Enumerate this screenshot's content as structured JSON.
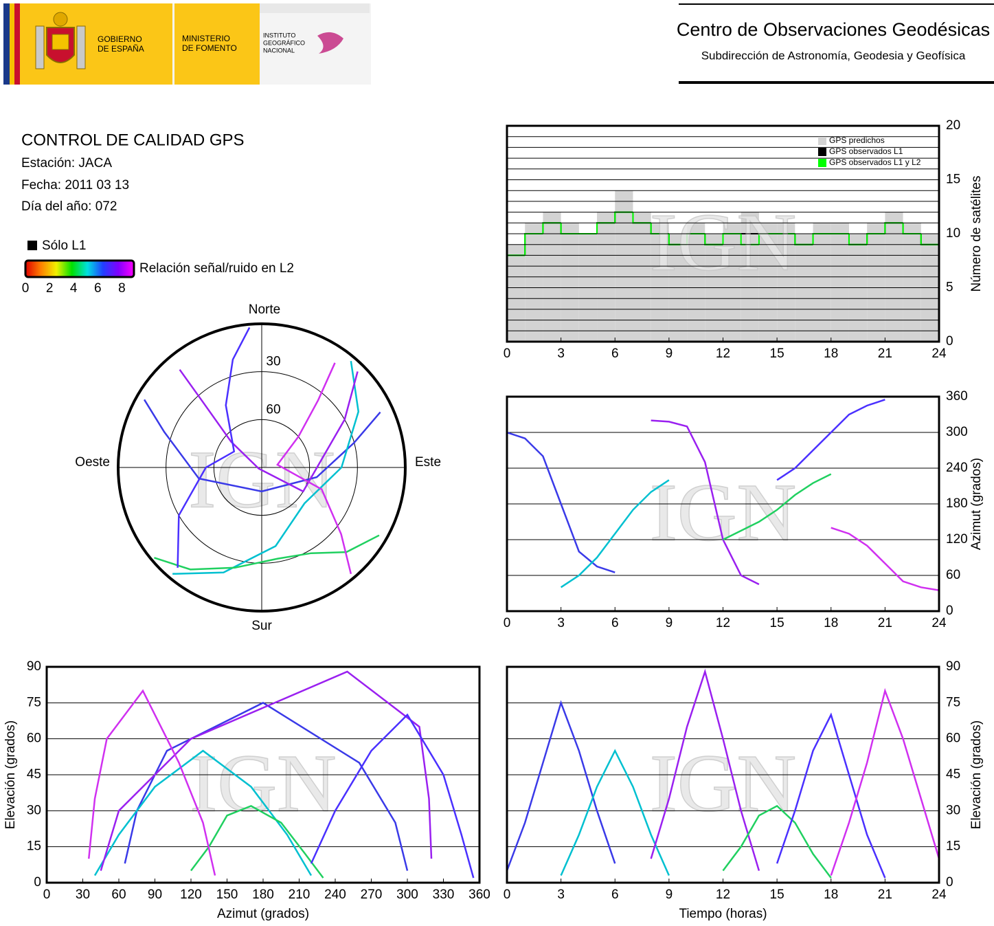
{
  "header": {
    "gobierno": [
      "GOBIERNO",
      "DE ESPAÑA"
    ],
    "ministerio": [
      "MINISTERIO",
      "DE FOMENTO"
    ],
    "instituto": [
      "INSTITUTO",
      "GEOGRÁFICO",
      "NACIONAL"
    ],
    "title": "Centro de Observaciones Geodésicas",
    "subtitle": "Subdirección de Astronomía, Geodesia y Geofísica"
  },
  "info": {
    "title": "CONTROL DE CALIDAD GPS",
    "station": "Estación: JACA",
    "date": "Fecha: 2011 03 13",
    "doy": "Día del año: 072",
    "l1_only": "Sólo L1",
    "colorbar": {
      "label": "Relación señal/ruido en L2",
      "lim": [
        0,
        9
      ],
      "ticks": [
        0,
        2,
        4,
        6,
        8
      ],
      "colors": [
        "#e00000",
        "#ff8000",
        "#f0f000",
        "#00e000",
        "#00e0e0",
        "#2040ff",
        "#8000ff",
        "#ff00ff"
      ]
    }
  },
  "watermark": "IGN",
  "chart_data": [
    {
      "type": "polar",
      "directions": {
        "north": "Norte",
        "south": "Sur",
        "west": "Oeste",
        "east": "Este"
      },
      "rlim": [
        0,
        90
      ],
      "rticks": [
        30,
        60
      ],
      "series": [
        {
          "color": "#3a3ae8",
          "azimuth": [
            300,
            290,
            260,
            180,
            100,
            75,
            65
          ],
          "elevation": [
            5,
            25,
            50,
            75,
            55,
            30,
            8
          ]
        },
        {
          "color": "#00c0d0",
          "azimuth": [
            40,
            60,
            90,
            130,
            170,
            200,
            220
          ],
          "elevation": [
            3,
            20,
            40,
            55,
            40,
            20,
            3
          ]
        },
        {
          "color": "#9a20f0",
          "azimuth": [
            320,
            318,
            310,
            250,
            120,
            60,
            45
          ],
          "elevation": [
            10,
            35,
            65,
            88,
            60,
            30,
            5
          ]
        },
        {
          "color": "#20d060",
          "azimuth": [
            120,
            135,
            150,
            170,
            195,
            215,
            230
          ],
          "elevation": [
            5,
            15,
            28,
            32,
            25,
            12,
            2
          ]
        },
        {
          "color": "#4a30ff",
          "azimuth": [
            220,
            240,
            270,
            300,
            330,
            345,
            355
          ],
          "elevation": [
            8,
            30,
            55,
            70,
            45,
            20,
            2
          ]
        },
        {
          "color": "#d030f0",
          "azimuth": [
            140,
            130,
            110,
            80,
            50,
            40,
            35
          ],
          "elevation": [
            3,
            25,
            50,
            80,
            60,
            35,
            10
          ]
        }
      ]
    },
    {
      "type": "step",
      "ylabel": "Número de satélites",
      "xlim": [
        0,
        24
      ],
      "xticks": [
        0,
        3,
        6,
        9,
        12,
        15,
        18,
        21,
        24
      ],
      "ylim": [
        0,
        20
      ],
      "yticks": [
        0,
        5,
        10,
        15,
        20
      ],
      "minor_yticks": [
        1,
        2,
        3,
        4,
        6,
        7,
        8,
        9,
        11,
        12,
        13,
        14,
        16,
        17,
        18,
        19
      ],
      "grid": true,
      "legend": "upper right",
      "x": [
        0,
        1,
        2,
        3,
        4,
        5,
        6,
        7,
        8,
        9,
        10,
        11,
        12,
        13,
        14,
        15,
        16,
        17,
        18,
        19,
        20,
        21,
        22,
        23
      ],
      "series": [
        {
          "name": "GPS predichos",
          "color": "#d3d3d3",
          "values": [
            9,
            11,
            12,
            11,
            10,
            12,
            14,
            12,
            11,
            10,
            11,
            10,
            11,
            12,
            11,
            11,
            10,
            11,
            11,
            10,
            11,
            12,
            11,
            10
          ]
        },
        {
          "name": "GPS observados L1",
          "color": "#000000",
          "values": [
            8,
            10,
            11,
            10,
            10,
            11,
            12,
            11,
            10,
            9,
            10,
            9,
            10,
            10,
            10,
            10,
            9,
            10,
            10,
            9,
            10,
            11,
            10,
            9
          ]
        },
        {
          "name": "GPS observados L1 y L2",
          "color": "#00ff00",
          "values": [
            8,
            10,
            11,
            10,
            10,
            11,
            12,
            11,
            10,
            9,
            10,
            9,
            10,
            9,
            10,
            10,
            9,
            10,
            10,
            9,
            10,
            11,
            10,
            9
          ]
        }
      ]
    },
    {
      "type": "line",
      "ylabel": "Azimut (grados)",
      "xlim": [
        0,
        24
      ],
      "xticks": [
        0,
        3,
        6,
        9,
        12,
        15,
        18,
        21,
        24
      ],
      "ylim": [
        0,
        360
      ],
      "yticks": [
        0,
        60,
        120,
        180,
        240,
        300,
        360
      ],
      "grid": true,
      "series": [
        {
          "color": "#3a3ae8",
          "x": [
            0,
            1,
            2,
            3,
            4,
            5,
            6
          ],
          "values": [
            300,
            290,
            260,
            180,
            100,
            75,
            65
          ]
        },
        {
          "color": "#00c0d0",
          "x": [
            3,
            4,
            5,
            6,
            7,
            8,
            9
          ],
          "values": [
            40,
            60,
            90,
            130,
            170,
            200,
            220
          ]
        },
        {
          "color": "#9a20f0",
          "x": [
            8,
            9,
            10,
            11,
            12,
            13,
            14
          ],
          "values": [
            320,
            318,
            310,
            250,
            120,
            60,
            45
          ]
        },
        {
          "color": "#20d060",
          "x": [
            12,
            13,
            14,
            15,
            16,
            17,
            18
          ],
          "values": [
            120,
            135,
            150,
            170,
            195,
            215,
            230
          ]
        },
        {
          "color": "#4a30ff",
          "x": [
            15,
            16,
            17,
            18,
            19,
            20,
            21
          ],
          "values": [
            220,
            240,
            270,
            300,
            330,
            345,
            355
          ]
        },
        {
          "color": "#d030f0",
          "x": [
            18,
            19,
            20,
            21,
            22,
            23,
            24
          ],
          "values": [
            140,
            130,
            110,
            80,
            50,
            40,
            35
          ]
        }
      ]
    },
    {
      "type": "line",
      "xlabel": "Azimut (grados)",
      "ylabel": "Elevación (grados)",
      "xlim": [
        0,
        360
      ],
      "xticks": [
        0,
        30,
        60,
        90,
        120,
        150,
        180,
        210,
        240,
        270,
        300,
        330,
        360
      ],
      "ylim": [
        0,
        90
      ],
      "yticks": [
        0,
        15,
        30,
        45,
        60,
        75,
        90
      ],
      "grid": true,
      "series": [
        {
          "color": "#3a3ae8",
          "x": [
            300,
            290,
            260,
            180,
            100,
            75,
            65
          ],
          "values": [
            5,
            25,
            50,
            75,
            55,
            30,
            8
          ]
        },
        {
          "color": "#00c0d0",
          "x": [
            40,
            60,
            90,
            130,
            170,
            200,
            220
          ],
          "values": [
            3,
            20,
            40,
            55,
            40,
            20,
            3
          ]
        },
        {
          "color": "#9a20f0",
          "x": [
            320,
            318,
            310,
            250,
            120,
            60,
            45
          ],
          "values": [
            10,
            35,
            65,
            88,
            60,
            30,
            5
          ]
        },
        {
          "color": "#20d060",
          "x": [
            120,
            135,
            150,
            170,
            195,
            215,
            230
          ],
          "values": [
            5,
            15,
            28,
            32,
            25,
            12,
            2
          ]
        },
        {
          "color": "#4a30ff",
          "x": [
            220,
            240,
            270,
            300,
            330,
            345,
            355
          ],
          "values": [
            8,
            30,
            55,
            70,
            45,
            20,
            2
          ]
        },
        {
          "color": "#d030f0",
          "x": [
            140,
            130,
            110,
            80,
            50,
            40,
            35
          ],
          "values": [
            3,
            25,
            50,
            80,
            60,
            35,
            10
          ]
        }
      ]
    },
    {
      "type": "line",
      "xlabel": "Tiempo (horas)",
      "ylabel": "Elevación (grados)",
      "xlim": [
        0,
        24
      ],
      "xticks": [
        0,
        3,
        6,
        9,
        12,
        15,
        18,
        21,
        24
      ],
      "ylim": [
        0,
        90
      ],
      "yticks": [
        0,
        15,
        30,
        45,
        60,
        75,
        90
      ],
      "grid": true,
      "series": [
        {
          "color": "#3a3ae8",
          "x": [
            0,
            1,
            2,
            3,
            4,
            5,
            6
          ],
          "values": [
            5,
            25,
            50,
            75,
            55,
            30,
            8
          ]
        },
        {
          "color": "#00c0d0",
          "x": [
            3,
            4,
            5,
            6,
            7,
            8,
            9
          ],
          "values": [
            3,
            20,
            40,
            55,
            40,
            20,
            3
          ]
        },
        {
          "color": "#9a20f0",
          "x": [
            8,
            9,
            10,
            11,
            12,
            13,
            14
          ],
          "values": [
            10,
            35,
            65,
            88,
            60,
            30,
            5
          ]
        },
        {
          "color": "#20d060",
          "x": [
            12,
            13,
            14,
            15,
            16,
            17,
            18
          ],
          "values": [
            5,
            15,
            28,
            32,
            25,
            12,
            2
          ]
        },
        {
          "color": "#4a30ff",
          "x": [
            15,
            16,
            17,
            18,
            19,
            20,
            21
          ],
          "values": [
            8,
            30,
            55,
            70,
            45,
            20,
            2
          ]
        },
        {
          "color": "#d030f0",
          "x": [
            18,
            19,
            20,
            21,
            22,
            23,
            24
          ],
          "values": [
            3,
            25,
            50,
            80,
            60,
            35,
            10
          ]
        }
      ]
    }
  ]
}
